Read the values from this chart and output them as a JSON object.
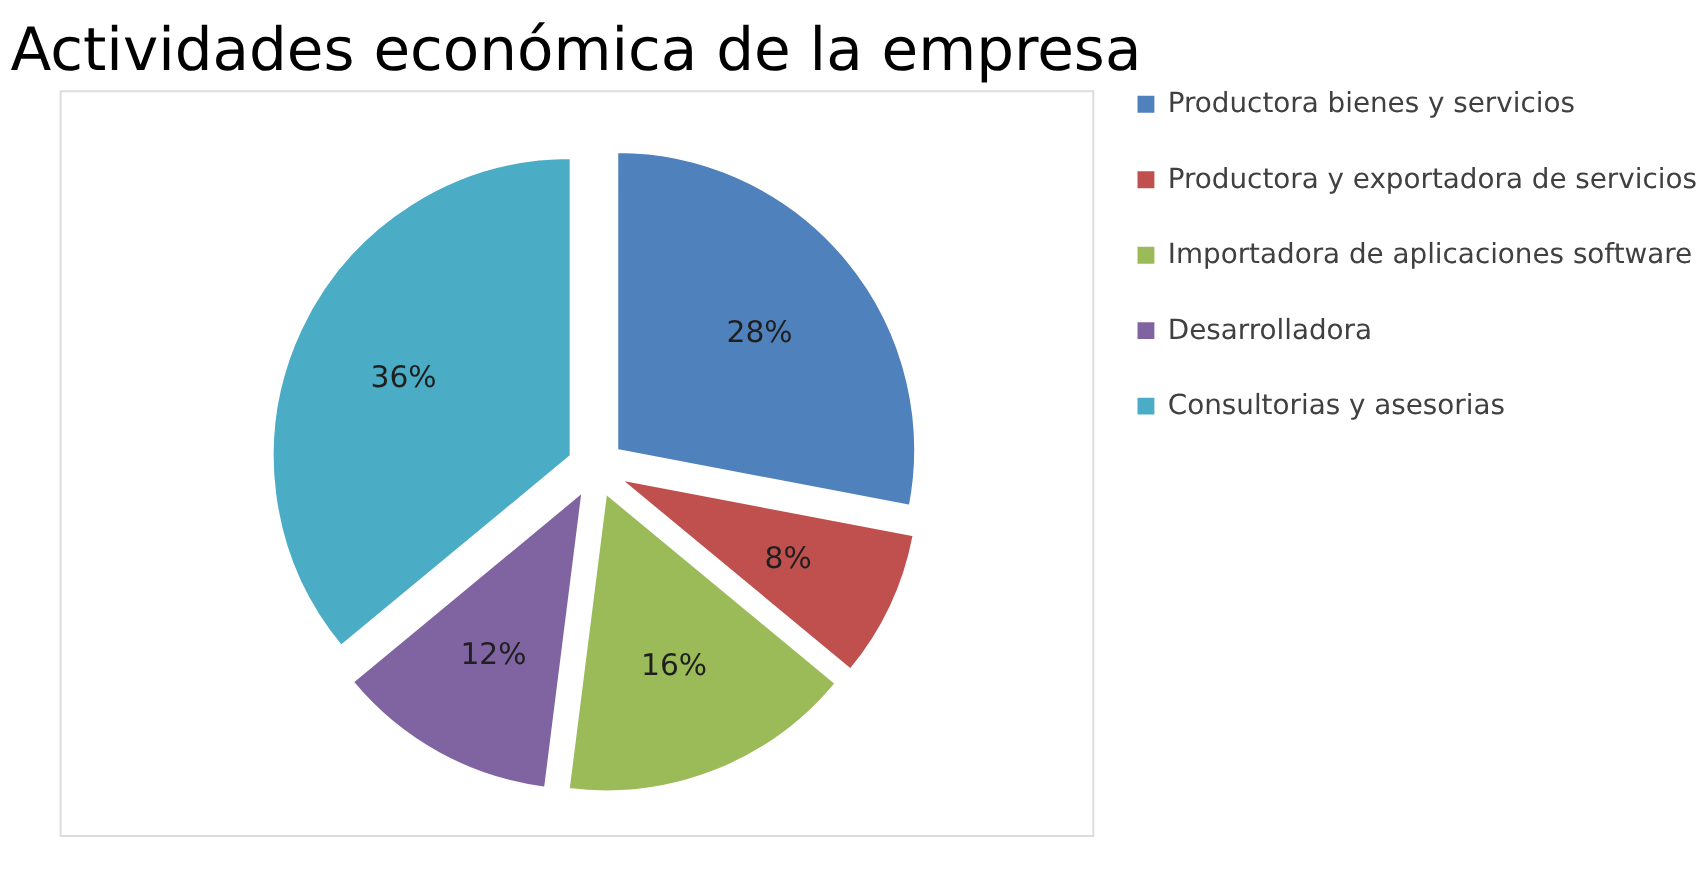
{
  "chart_data": {
    "type": "pie",
    "title": "Actividades económica de la empresa",
    "categories": [
      "Productora bienes y servicios",
      "Productora y exportadora de servicios",
      "Importadora de aplicaciones software",
      "Desarrolladora",
      "Consultorias y asesorias"
    ],
    "values": [
      28,
      8,
      16,
      12,
      36
    ],
    "colors": [
      "#4f81bd",
      "#c0504d",
      "#9bbb59",
      "#8064a2",
      "#4bacc6"
    ],
    "value_labels": [
      "28%",
      "8%",
      "16%",
      "12%",
      "36%"
    ],
    "legend": "right"
  }
}
